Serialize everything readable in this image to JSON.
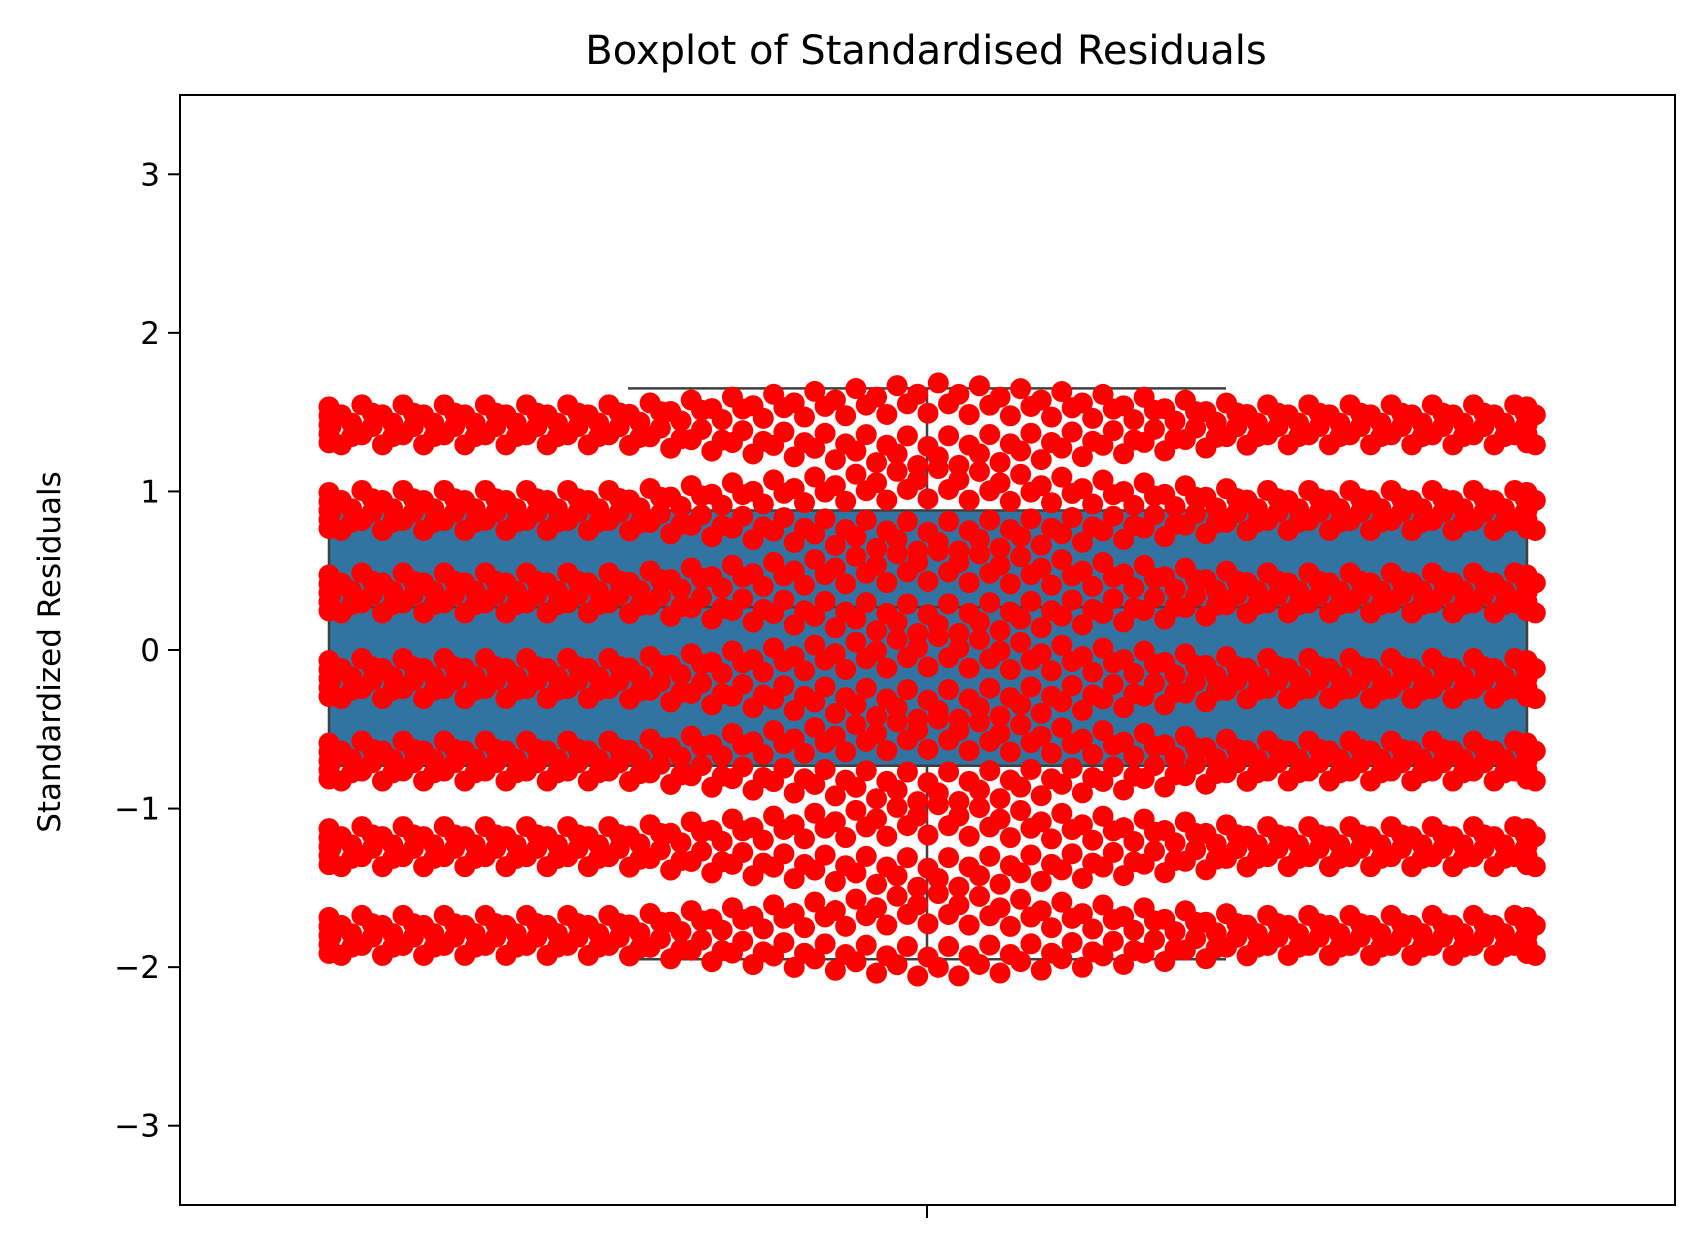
{
  "chart_data": {
    "type": "box",
    "title": "Boxplot of  Standardised Residuals",
    "xlabel": "",
    "ylabel": "Standardized Residuals",
    "ylim": [
      -3.5,
      3.5
    ],
    "yticks": [
      -3,
      -2,
      -1,
      0,
      1,
      2,
      3
    ],
    "ytick_labels": [
      "−3",
      "−2",
      "−1",
      "0",
      "1",
      "2",
      "3"
    ],
    "grid": false,
    "box": {
      "q1": -0.73,
      "median": 0.27,
      "q3": 0.88,
      "whisker_low": -1.95,
      "whisker_high": 1.65,
      "color": "#3274a1",
      "line_color": "#3f3f3f"
    },
    "swarm": {
      "color": "#ff0000",
      "bands": [
        {
          "y": 1.42,
          "n": 236
        },
        {
          "y": 0.88,
          "n": 236
        },
        {
          "y": 0.36,
          "n": 236
        },
        {
          "y": -0.18,
          "n": 236
        },
        {
          "y": -0.7,
          "n": 236
        },
        {
          "y": -1.24,
          "n": 236
        },
        {
          "y": -1.8,
          "n": 236
        }
      ]
    }
  }
}
